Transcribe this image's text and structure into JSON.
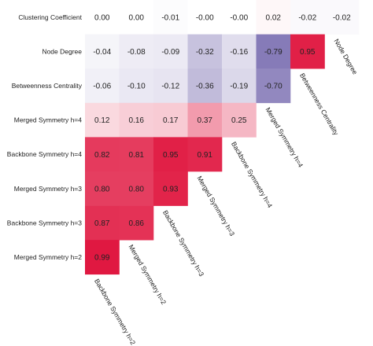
{
  "chart_data": {
    "type": "heatmap",
    "rows": [
      "Clustering Coefficient",
      "Node Degree",
      "Betweenness Centrality",
      "Merged Symmetry h=4",
      "Backbone Symmetry h=4",
      "Merged Symmetry h=3",
      "Backbone Symmetry h=3",
      "Merged Symmetry h=2"
    ],
    "columns": [
      "Backbone Symmetry h=2",
      "Merged Symmetry h=2",
      "Backbone Symmetry h=3",
      "Merged Symmetry h=3",
      "Backbone Symmetry h=4",
      "Merged Symmetry h=4",
      "Betweenness Centrality",
      "Node Degree"
    ],
    "values": [
      [
        0.0,
        0.0,
        -0.01,
        -0.0,
        -0.0,
        0.02,
        -0.02,
        -0.02
      ],
      [
        -0.04,
        -0.08,
        -0.09,
        -0.32,
        -0.16,
        -0.79,
        0.95
      ],
      [
        -0.06,
        -0.1,
        -0.12,
        -0.36,
        -0.19,
        -0.7
      ],
      [
        0.12,
        0.16,
        0.17,
        0.37,
        0.25
      ],
      [
        0.82,
        0.81,
        0.95,
        0.91
      ],
      [
        0.8,
        0.8,
        0.93
      ],
      [
        0.87,
        0.86
      ],
      [
        0.99
      ]
    ],
    "value_labels": [
      [
        "0.00",
        "0.00",
        "-0.01",
        "-0.00",
        "-0.00",
        "0.02",
        "-0.02",
        "-0.02"
      ],
      [
        "-0.04",
        "-0.08",
        "-0.09",
        "-0.32",
        "-0.16",
        "-0.79",
        "0.95"
      ],
      [
        "-0.06",
        "-0.10",
        "-0.12",
        "-0.36",
        "-0.19",
        "-0.70"
      ],
      [
        "0.12",
        "0.16",
        "0.17",
        "0.37",
        "0.25"
      ],
      [
        "0.82",
        "0.81",
        "0.95",
        "0.91"
      ],
      [
        "0.80",
        "0.80",
        "0.93"
      ],
      [
        "0.87",
        "0.86"
      ],
      [
        "0.99"
      ]
    ],
    "color_range": [
      -1,
      1
    ],
    "colors": {
      "negative": "#6b5ea8",
      "neutral": "#ffffff",
      "positive": "#e0163f"
    },
    "grid": false,
    "legend": "none"
  }
}
